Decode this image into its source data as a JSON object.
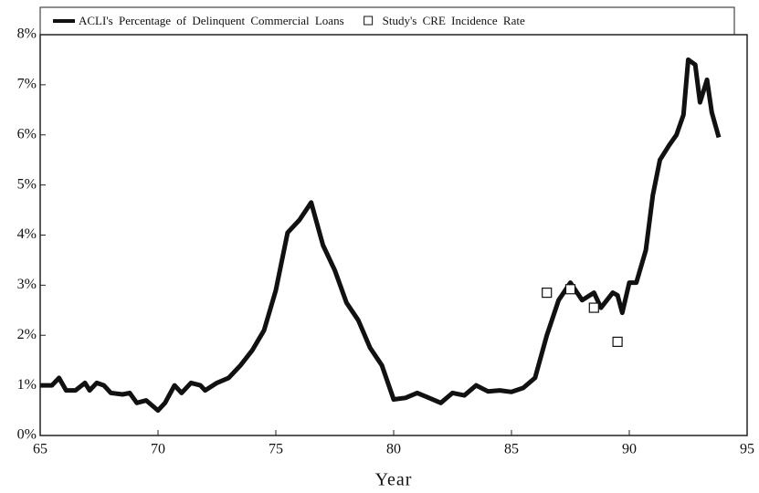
{
  "chart_data": {
    "type": "line",
    "xlabel": "Year",
    "xlim": [
      65,
      95
    ],
    "xticks": [
      65,
      70,
      75,
      80,
      85,
      90,
      95
    ],
    "ylim": [
      0,
      8
    ],
    "yticks": [
      {
        "value": 0,
        "label": "0%"
      },
      {
        "value": 1,
        "label": "1%"
      },
      {
        "value": 2,
        "label": "2%"
      },
      {
        "value": 3,
        "label": "3%"
      },
      {
        "value": 4,
        "label": "4%"
      },
      {
        "value": 5,
        "label": "5%"
      },
      {
        "value": 6,
        "label": "6%"
      },
      {
        "value": 7,
        "label": "7%"
      },
      {
        "value": 8,
        "label": "8%"
      }
    ],
    "legend": "top",
    "series": [
      {
        "name": "ACLI's Percentage of Delinquent Commercial Loans",
        "color": "#111111",
        "marker": "line",
        "x": [
          65,
          65.5,
          65.8,
          66.1,
          66.5,
          66.9,
          67.1,
          67.4,
          67.7,
          68,
          68.5,
          68.8,
          69.1,
          69.5,
          70,
          70.3,
          70.7,
          71,
          71.4,
          71.8,
          72,
          72.5,
          73,
          73.5,
          74,
          74.5,
          75,
          75.5,
          76,
          76.5,
          77,
          77.5,
          78,
          78.5,
          79,
          79.5,
          80,
          80.5,
          81,
          81.5,
          82,
          82.5,
          83,
          83.5,
          84,
          84.5,
          85,
          85.5,
          86,
          86.5,
          87,
          87.5,
          88,
          88.5,
          88.8,
          89.3,
          89.5,
          89.7,
          90,
          90.3,
          90.7,
          91,
          91.3,
          91.7,
          92,
          92.3,
          92.5,
          92.8,
          93,
          93.3,
          93.5,
          93.8
        ],
        "values": [
          1.0,
          1.0,
          1.15,
          0.9,
          0.9,
          1.05,
          0.9,
          1.05,
          1.0,
          0.85,
          0.82,
          0.85,
          0.65,
          0.7,
          0.5,
          0.65,
          1.0,
          0.85,
          1.05,
          1.0,
          0.9,
          1.05,
          1.15,
          1.4,
          1.7,
          2.1,
          2.9,
          4.05,
          4.3,
          4.65,
          3.8,
          3.3,
          2.65,
          2.3,
          1.75,
          1.4,
          0.72,
          0.75,
          0.85,
          0.75,
          0.65,
          0.85,
          0.8,
          1.0,
          0.88,
          0.9,
          0.87,
          0.95,
          1.15,
          2.0,
          2.7,
          3.05,
          2.7,
          2.85,
          2.55,
          2.85,
          2.8,
          2.45,
          3.05,
          3.05,
          3.7,
          4.8,
          5.5,
          5.8,
          6.0,
          6.4,
          7.5,
          7.4,
          6.65,
          7.1,
          6.45,
          5.95
        ]
      },
      {
        "name": "Study's CRE Incidence Rate",
        "color": "#111111",
        "marker": "square",
        "x": [
          86.5,
          87.5,
          88.5,
          89.5
        ],
        "values": [
          2.85,
          2.92,
          2.55,
          1.87
        ]
      }
    ]
  }
}
